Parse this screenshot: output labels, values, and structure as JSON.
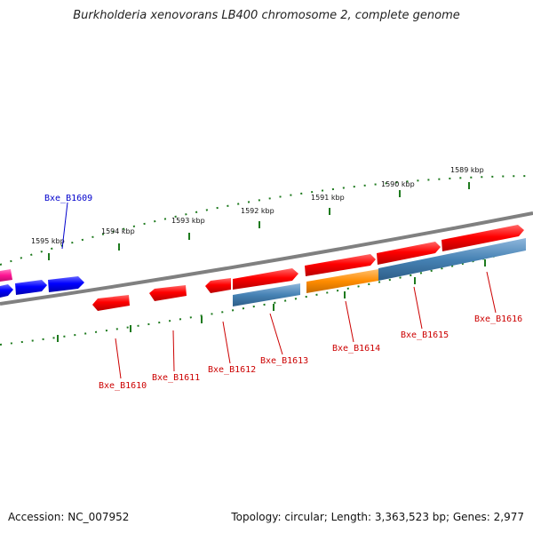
{
  "title": "Burkholderia xenovorans LB400 chromosome 2, complete genome",
  "footer": {
    "accession": "Accession: NC_007952",
    "topology": "Topology: circular; Length: 3,363,523 bp; Genes: 2,977"
  },
  "colors": {
    "backbone": "#808080",
    "tick": "#1e7a1e",
    "gene_red": "#ff0000",
    "gene_blue": "#0000ff",
    "gene_magenta": "#ff1493",
    "gene_steel": "#4682b4",
    "gene_orange": "#ff8c00",
    "label_red": "#cc0000",
    "label_blue": "#0000cc"
  },
  "scale_labels": [
    "1589 kbp",
    "1590 kbp",
    "1591 kbp",
    "1592 kbp",
    "1593 kbp",
    "1594 kbp",
    "1595 kbp"
  ],
  "gene_labels": [
    {
      "text": "Bxe_B1609",
      "color": "blue"
    },
    {
      "text": "Bxe_B1610",
      "color": "red"
    },
    {
      "text": "Bxe_B1611",
      "color": "red"
    },
    {
      "text": "Bxe_B1612",
      "color": "red"
    },
    {
      "text": "Bxe_B1613",
      "color": "red"
    },
    {
      "text": "Bxe_B1614",
      "color": "red"
    },
    {
      "text": "Bxe_B1615",
      "color": "red"
    },
    {
      "text": "Bxe_B1616",
      "color": "red"
    }
  ]
}
